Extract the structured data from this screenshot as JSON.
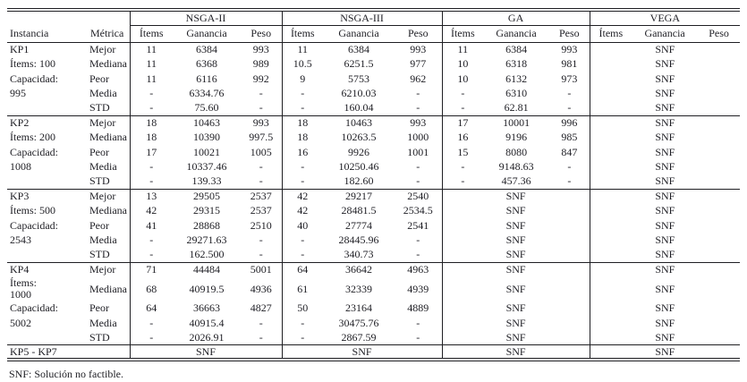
{
  "table": {
    "headers": {
      "instancia": "Instancia",
      "metrica": "Métrica",
      "items": "Ítems",
      "ganancia": "Ganancia",
      "peso": "Peso"
    },
    "algorithms": [
      "NSGA-II",
      "NSGA-III",
      "GA",
      "VEGA"
    ],
    "sections": [
      {
        "id": "KP1",
        "rows": [
          {
            "instancia": "KP1",
            "metric": "Mejor",
            "groups": [
              [
                "11",
                "6384",
                "993"
              ],
              [
                "11",
                "6384",
                "993"
              ],
              [
                "11",
                "6384",
                "993"
              ],
              "SNF"
            ]
          },
          {
            "instancia": "Ítems: 100",
            "metric": "Mediana",
            "groups": [
              [
                "11",
                "6368",
                "989"
              ],
              [
                "10.5",
                "6251.5",
                "977"
              ],
              [
                "10",
                "6318",
                "981"
              ],
              "SNF"
            ]
          },
          {
            "instancia": "Capacidad:",
            "metric": "Peor",
            "groups": [
              [
                "11",
                "6116",
                "992"
              ],
              [
                "9",
                "5753",
                "962"
              ],
              [
                "10",
                "6132",
                "973"
              ],
              "SNF"
            ]
          },
          {
            "instancia": "995",
            "metric": "Media",
            "groups": [
              [
                "-",
                "6334.76",
                "-"
              ],
              [
                "-",
                "6210.03",
                "-"
              ],
              [
                "-",
                "6310",
                "-"
              ],
              "SNF"
            ]
          },
          {
            "instancia": "",
            "metric": "STD",
            "groups": [
              [
                "-",
                "75.60",
                "-"
              ],
              [
                "-",
                "160.04",
                "-"
              ],
              [
                "-",
                "62.81",
                "-"
              ],
              "SNF"
            ]
          }
        ]
      },
      {
        "id": "KP2",
        "rows": [
          {
            "instancia": "KP2",
            "metric": "Mejor",
            "groups": [
              [
                "18",
                "10463",
                "993"
              ],
              [
                "18",
                "10463",
                "993"
              ],
              [
                "17",
                "10001",
                "996"
              ],
              "SNF"
            ]
          },
          {
            "instancia": "Ítems: 200",
            "metric": "Mediana",
            "groups": [
              [
                "18",
                "10390",
                "997.5"
              ],
              [
                "18",
                "10263.5",
                "1000"
              ],
              [
                "16",
                "9196",
                "985"
              ],
              "SNF"
            ]
          },
          {
            "instancia": "Capacidad:",
            "metric": "Peor",
            "groups": [
              [
                "17",
                "10021",
                "1005"
              ],
              [
                "16",
                "9926",
                "1001"
              ],
              [
                "15",
                "8080",
                "847"
              ],
              "SNF"
            ]
          },
          {
            "instancia": "1008",
            "metric": "Media",
            "groups": [
              [
                "-",
                "10337.46",
                "-"
              ],
              [
                "-",
                "10250.46",
                "-"
              ],
              [
                "-",
                "9148.63",
                "-"
              ],
              "SNF"
            ]
          },
          {
            "instancia": "",
            "metric": "STD",
            "groups": [
              [
                "-",
                "139.33",
                "-"
              ],
              [
                "-",
                "182.60",
                "-"
              ],
              [
                "-",
                "457.36",
                "-"
              ],
              "SNF"
            ]
          }
        ]
      },
      {
        "id": "KP3",
        "rows": [
          {
            "instancia": "KP3",
            "metric": "Mejor",
            "groups": [
              [
                "13",
                "29505",
                "2537"
              ],
              [
                "42",
                "29217",
                "2540"
              ],
              "SNF",
              "SNF"
            ]
          },
          {
            "instancia": "Ítems: 500",
            "metric": "Mediana",
            "groups": [
              [
                "42",
                "29315",
                "2537"
              ],
              [
                "42",
                "28481.5",
                "2534.5"
              ],
              "SNF",
              "SNF"
            ]
          },
          {
            "instancia": "Capacidad:",
            "metric": "Peor",
            "groups": [
              [
                "41",
                "28868",
                "2510"
              ],
              [
                "40",
                "27774",
                "2541"
              ],
              "SNF",
              "SNF"
            ]
          },
          {
            "instancia": "2543",
            "metric": "Media",
            "groups": [
              [
                "-",
                "29271.63",
                "-"
              ],
              [
                "-",
                "28445.96",
                "-"
              ],
              "SNF",
              "SNF"
            ]
          },
          {
            "instancia": "",
            "metric": "STD",
            "groups": [
              [
                "-",
                "162.500",
                "-"
              ],
              [
                "-",
                "340.73",
                "-"
              ],
              "SNF",
              "SNF"
            ]
          }
        ]
      },
      {
        "id": "KP4",
        "rows": [
          {
            "instancia": "KP4",
            "metric": "Mejor",
            "groups": [
              [
                "71",
                "44484",
                "5001"
              ],
              [
                "64",
                "36642",
                "4963"
              ],
              "SNF",
              "SNF"
            ]
          },
          {
            "instancia": "Ítems:\n1000",
            "metric": "Mediana",
            "groups": [
              [
                "68",
                "40919.5",
                "4936"
              ],
              [
                "61",
                "32339",
                "4939"
              ],
              "SNF",
              "SNF"
            ]
          },
          {
            "instancia": "Capacidad:",
            "metric": "Peor",
            "groups": [
              [
                "64",
                "36663",
                "4827"
              ],
              [
                "50",
                "23164",
                "4889"
              ],
              "SNF",
              "SNF"
            ]
          },
          {
            "instancia": "5002",
            "metric": "Media",
            "groups": [
              [
                "-",
                "40915.4",
                "-"
              ],
              [
                "-",
                "30475.76",
                "-"
              ],
              "SNF",
              "SNF"
            ]
          },
          {
            "instancia": "",
            "metric": "STD",
            "groups": [
              [
                "-",
                "2026.91",
                "-"
              ],
              [
                "-",
                "2867.59",
                "-"
              ],
              "SNF",
              "SNF"
            ]
          }
        ]
      }
    ],
    "summary_row": {
      "instancia": "KP5 - KP7",
      "groups": [
        "SNF",
        "SNF",
        "SNF",
        "SNF"
      ]
    },
    "footnote": "SNF: Solución no factible."
  }
}
